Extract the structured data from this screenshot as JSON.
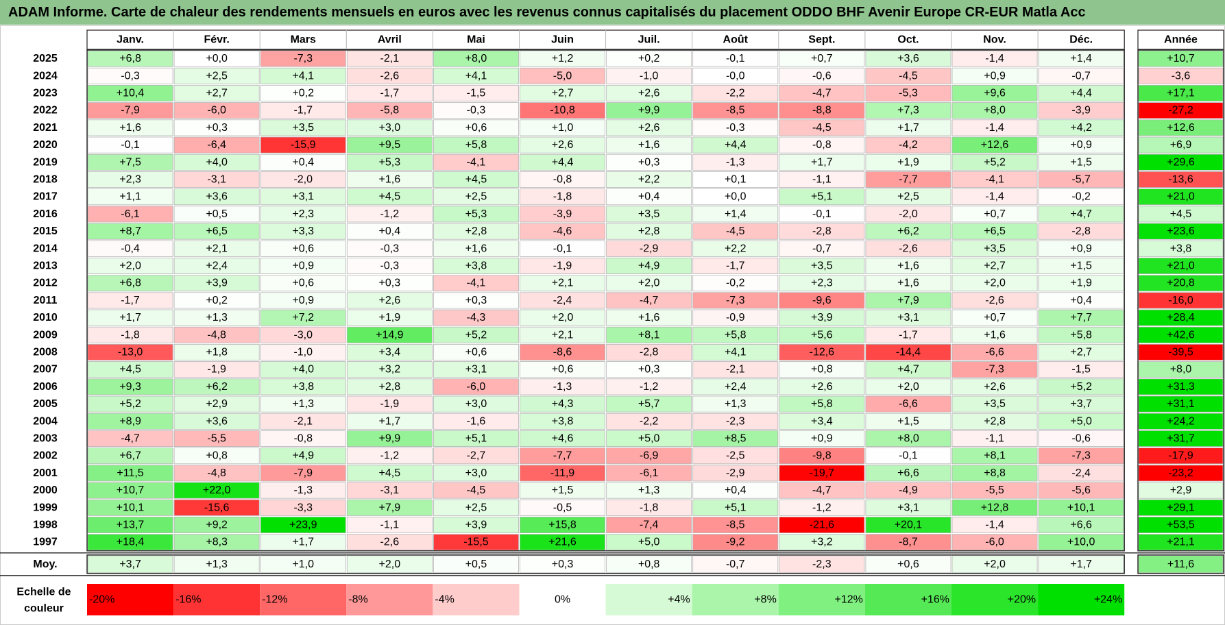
{
  "title": "ADAM Informe. Carte de chaleur des rendements mensuels en euros avec les revenus connus capitalisés du placement ODDO BHF Avenir Europe CR-EUR Matla Acc",
  "chart_data": {
    "type": "heatmap",
    "title": "ADAM Informe. Carte de chaleur des rendements mensuels en euros avec les revenus connus capitalisés du placement ODDO BHF Avenir Europe CR-EUR Matla Acc",
    "months": [
      "Janv.",
      "Févr.",
      "Mars",
      "Avril",
      "Mai",
      "Juin",
      "Juil.",
      "Août",
      "Sept.",
      "Oct.",
      "Nov.",
      "Déc."
    ],
    "year_header": "Année",
    "rows": [
      {
        "year": "2025",
        "values": [
          "+6,8",
          "+0,0",
          "-7,3",
          "-2,1",
          "+8,0",
          "+1,2",
          "+0,2",
          "-0,1",
          "+0,7",
          "+3,6",
          "-1,4",
          "+1,4"
        ],
        "annual": "+10,7"
      },
      {
        "year": "2024",
        "values": [
          "-0,3",
          "+2,5",
          "+4,1",
          "-2,6",
          "+4,1",
          "-5,0",
          "-1,0",
          "-0,0",
          "-0,6",
          "-4,5",
          "+0,9",
          "-0,7"
        ],
        "annual": "-3,6"
      },
      {
        "year": "2023",
        "values": [
          "+10,4",
          "+2,7",
          "+0,2",
          "-1,7",
          "-1,5",
          "+2,7",
          "+2,6",
          "-2,2",
          "-4,7",
          "-5,3",
          "+9,6",
          "+4,4"
        ],
        "annual": "+17,1"
      },
      {
        "year": "2022",
        "values": [
          "-7,9",
          "-6,0",
          "-1,7",
          "-5,8",
          "-0,3",
          "-10,8",
          "+9,9",
          "-8,5",
          "-8,8",
          "+7,3",
          "+8,0",
          "-3,9"
        ],
        "annual": "-27,2"
      },
      {
        "year": "2021",
        "values": [
          "+1,6",
          "+0,3",
          "+3,5",
          "+3,0",
          "+0,6",
          "+1,0",
          "+2,6",
          "-0,3",
          "-4,5",
          "+1,7",
          "-1,4",
          "+4,2"
        ],
        "annual": "+12,6"
      },
      {
        "year": "2020",
        "values": [
          "-0,1",
          "-6,4",
          "-15,9",
          "+9,5",
          "+5,8",
          "+2,6",
          "+1,6",
          "+4,4",
          "-0,8",
          "-4,2",
          "+12,6",
          "+0,9"
        ],
        "annual": "+6,9"
      },
      {
        "year": "2019",
        "values": [
          "+7,5",
          "+4,0",
          "+0,4",
          "+5,3",
          "-4,1",
          "+4,4",
          "+0,3",
          "-1,3",
          "+1,7",
          "+1,9",
          "+5,2",
          "+1,5"
        ],
        "annual": "+29,6"
      },
      {
        "year": "2018",
        "values": [
          "+2,3",
          "-3,1",
          "-2,0",
          "+1,6",
          "+4,5",
          "-0,8",
          "+2,2",
          "+0,1",
          "-1,1",
          "-7,7",
          "-4,1",
          "-5,7"
        ],
        "annual": "-13,6"
      },
      {
        "year": "2017",
        "values": [
          "+1,1",
          "+3,6",
          "+3,1",
          "+4,5",
          "+2,5",
          "-1,8",
          "+0,4",
          "+0,0",
          "+5,1",
          "+2,5",
          "-1,4",
          "-0,2"
        ],
        "annual": "+21,0"
      },
      {
        "year": "2016",
        "values": [
          "-6,1",
          "+0,5",
          "+2,3",
          "-1,2",
          "+5,3",
          "-3,9",
          "+3,5",
          "+1,4",
          "-0,1",
          "-2,0",
          "+0,7",
          "+4,7"
        ],
        "annual": "+4,5"
      },
      {
        "year": "2015",
        "values": [
          "+8,7",
          "+6,5",
          "+3,3",
          "+0,4",
          "+2,8",
          "-4,6",
          "+2,8",
          "-4,5",
          "-2,8",
          "+6,2",
          "+6,5",
          "-2,8"
        ],
        "annual": "+23,6"
      },
      {
        "year": "2014",
        "values": [
          "-0,4",
          "+2,1",
          "+0,6",
          "-0,3",
          "+1,6",
          "-0,1",
          "-2,9",
          "+2,2",
          "-0,7",
          "-2,6",
          "+3,5",
          "+0,9"
        ],
        "annual": "+3,8"
      },
      {
        "year": "2013",
        "values": [
          "+2,0",
          "+2,4",
          "+0,9",
          "-0,3",
          "+3,8",
          "-1,9",
          "+4,9",
          "-1,7",
          "+3,5",
          "+1,6",
          "+2,7",
          "+1,5"
        ],
        "annual": "+21,0"
      },
      {
        "year": "2012",
        "values": [
          "+6,8",
          "+3,9",
          "+0,6",
          "+0,3",
          "-4,1",
          "+2,1",
          "+2,0",
          "-0,2",
          "+2,3",
          "+1,6",
          "+2,0",
          "+1,9"
        ],
        "annual": "+20,8"
      },
      {
        "year": "2011",
        "values": [
          "-1,7",
          "+0,2",
          "+0,9",
          "+2,6",
          "+0,3",
          "-2,4",
          "-4,7",
          "-7,3",
          "-9,6",
          "+7,9",
          "-2,6",
          "+0,4"
        ],
        "annual": "-16,0"
      },
      {
        "year": "2010",
        "values": [
          "+1,7",
          "+1,3",
          "+7,2",
          "+1,9",
          "-4,3",
          "+2,0",
          "+1,6",
          "-0,9",
          "+3,9",
          "+3,1",
          "+0,7",
          "+7,7"
        ],
        "annual": "+28,4"
      },
      {
        "year": "2009",
        "values": [
          "-1,8",
          "-4,8",
          "-3,0",
          "+14,9",
          "+5,2",
          "+2,1",
          "+8,1",
          "+5,8",
          "+5,6",
          "-1,7",
          "+1,6",
          "+5,8"
        ],
        "annual": "+42,6"
      },
      {
        "year": "2008",
        "values": [
          "-13,0",
          "+1,8",
          "-1,0",
          "+3,4",
          "+0,6",
          "-8,6",
          "-2,8",
          "+4,1",
          "-12,6",
          "-14,4",
          "-6,6",
          "+2,7"
        ],
        "annual": "-39,5"
      },
      {
        "year": "2007",
        "values": [
          "+4,5",
          "-1,9",
          "+4,0",
          "+3,2",
          "+3,1",
          "+0,6",
          "+0,3",
          "-2,1",
          "+0,8",
          "+4,7",
          "-7,3",
          "-1,5"
        ],
        "annual": "+8,0"
      },
      {
        "year": "2006",
        "values": [
          "+9,3",
          "+6,2",
          "+3,8",
          "+2,8",
          "-6,0",
          "-1,3",
          "-1,2",
          "+2,4",
          "+2,6",
          "+2,0",
          "+2,6",
          "+5,2"
        ],
        "annual": "+31,3"
      },
      {
        "year": "2005",
        "values": [
          "+5,2",
          "+2,9",
          "+1,3",
          "-1,9",
          "+3,0",
          "+4,3",
          "+5,7",
          "+1,3",
          "+5,8",
          "-6,6",
          "+3,5",
          "+3,7"
        ],
        "annual": "+31,1"
      },
      {
        "year": "2004",
        "values": [
          "+8,9",
          "+3,6",
          "-2,1",
          "+1,7",
          "-1,6",
          "+3,8",
          "-2,2",
          "-2,3",
          "+3,4",
          "+1,5",
          "+2,8",
          "+5,0"
        ],
        "annual": "+24,2"
      },
      {
        "year": "2003",
        "values": [
          "-4,7",
          "-5,5",
          "-0,8",
          "+9,9",
          "+5,1",
          "+4,6",
          "+5,0",
          "+8,5",
          "+0,9",
          "+8,0",
          "-1,1",
          "-0,6"
        ],
        "annual": "+31,7"
      },
      {
        "year": "2002",
        "values": [
          "+6,7",
          "+0,8",
          "+4,9",
          "-1,2",
          "-2,7",
          "-7,7",
          "-6,9",
          "-2,5",
          "-9,8",
          "-0,1",
          "+8,1",
          "-7,3"
        ],
        "annual": "-17,9"
      },
      {
        "year": "2001",
        "values": [
          "+11,5",
          "-4,8",
          "-7,9",
          "+4,5",
          "+3,0",
          "-11,9",
          "-6,1",
          "-2,9",
          "-19,7",
          "+6,6",
          "+8,8",
          "-2,4"
        ],
        "annual": "-23,2"
      },
      {
        "year": "2000",
        "values": [
          "+10,7",
          "+22,0",
          "-1,3",
          "-3,1",
          "-4,5",
          "+1,5",
          "+1,3",
          "+0,4",
          "-4,7",
          "-4,9",
          "-5,5",
          "-5,6"
        ],
        "annual": "+2,9"
      },
      {
        "year": "1999",
        "values": [
          "+10,1",
          "-15,6",
          "-3,3",
          "+7,9",
          "+2,5",
          "-0,5",
          "-1,8",
          "+5,1",
          "-1,2",
          "+3,1",
          "+12,8",
          "+10,1"
        ],
        "annual": "+29,1"
      },
      {
        "year": "1998",
        "values": [
          "+13,7",
          "+9,2",
          "+23,9",
          "-1,1",
          "+3,9",
          "+15,8",
          "-7,4",
          "-8,5",
          "-21,6",
          "+20,1",
          "-1,4",
          "+6,6"
        ],
        "annual": "+53,5"
      },
      {
        "year": "1997",
        "values": [
          "+18,4",
          "+8,3",
          "+1,7",
          "-2,6",
          "-15,5",
          "+21,6",
          "+5,0",
          "-9,2",
          "+3,2",
          "-8,7",
          "-6,0",
          "+10,0"
        ],
        "annual": "+21,1"
      }
    ],
    "average": {
      "label": "Moy.",
      "values": [
        "+3,7",
        "+1,3",
        "+1,0",
        "+2,0",
        "+0,5",
        "+0,3",
        "+0,8",
        "-0,7",
        "-2,3",
        "+0,6",
        "+2,0",
        "+1,7"
      ],
      "annual": "+11,6"
    },
    "legend": {
      "label_line1": "Echelle de",
      "label_line2": "couleur",
      "items": [
        {
          "label": "-20%",
          "value": -20
        },
        {
          "label": "-16%",
          "value": -16
        },
        {
          "label": "-12%",
          "value": -12
        },
        {
          "label": "-8%",
          "value": -8
        },
        {
          "label": "-4%",
          "value": -4
        },
        {
          "label": "0%",
          "value": 0
        },
        {
          "label": "+4%",
          "value": 4
        },
        {
          "label": "+8%",
          "value": 8
        },
        {
          "label": "+12%",
          "value": 12
        },
        {
          "label": "+16%",
          "value": 16
        },
        {
          "label": "+20%",
          "value": 20
        },
        {
          "label": "+24%",
          "value": 24
        }
      ]
    },
    "scale": {
      "min": -20,
      "max": 24
    },
    "colors": {
      "negative_max": "#ff0000",
      "neutral": "#ffffff",
      "positive_max": "#00e000",
      "title_bg": "#8fc48f",
      "grid": "#b5b5b5"
    }
  }
}
